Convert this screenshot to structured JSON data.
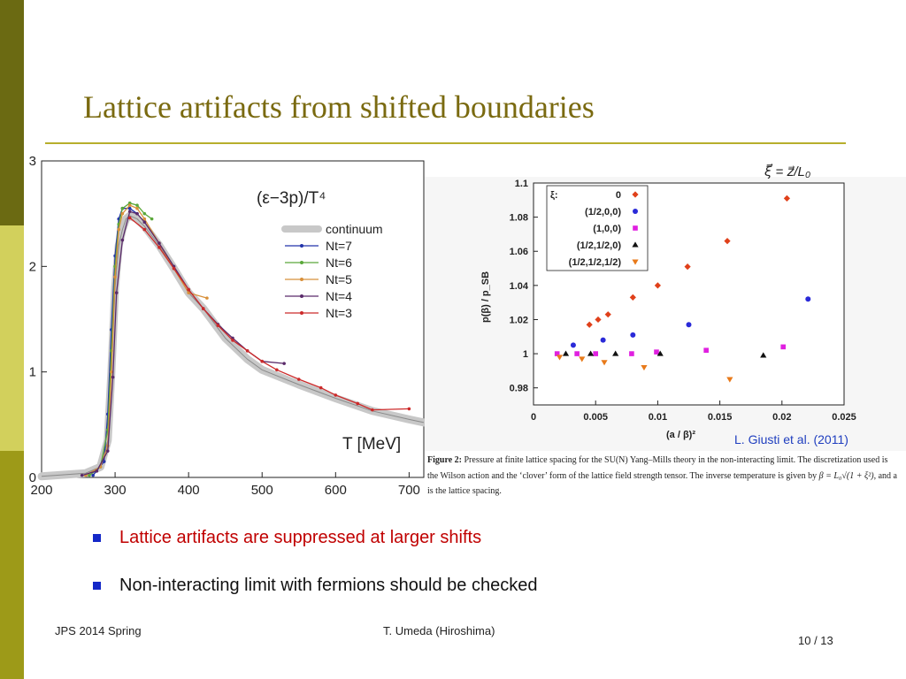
{
  "slide": {
    "title": "Lattice artifacts from shifted boundaries",
    "bullets": [
      "Lattice artifacts are suppressed at larger shifts",
      "Non-interacting limit with fermions should be checked"
    ],
    "footer_left": "JPS 2014 Spring",
    "footer_center": "T. Umeda (Hiroshima)",
    "page_number": "10 / 13",
    "citation": "L. Giusti et al. (2011)",
    "formula": "ξ⃗ = z⃗/L₀",
    "caption": {
      "label": "Figure 2:",
      "text_1": " Pressure at finite lattice spacing for the SU(N) Yang–Mills theory in the non-interacting limit. The discretization used is the Wilson action and the ‘clover’ form of the lattice field strength tensor. The inverse temperature is given by ",
      "formula": "β = L₀√(1 + ξ²)",
      "text_2": ", and a is the lattice spacing."
    },
    "colors": {
      "sidebar_dark": "#6b6a12",
      "sidebar_light": "#d2d05c",
      "title": "#7a6a10",
      "rule": "#b7ae2c",
      "bullet_marker": "#1428c8",
      "bullet_red": "#c00000",
      "citation": "#1f3ebf"
    }
  },
  "chart_data": [
    {
      "type": "line",
      "title": "(ε−3p)/T⁴",
      "xlabel": "T [MeV]",
      "ylabel": "",
      "xlim": [
        200,
        720
      ],
      "ylim": [
        0,
        3
      ],
      "xticks": [
        200,
        300,
        400,
        500,
        600,
        700
      ],
      "yticks": [
        0,
        1,
        2,
        3
      ],
      "legend_position": "right",
      "series": [
        {
          "name": "continuum",
          "color": "#aaaaaa",
          "band": true,
          "x": [
            200,
            260,
            280,
            290,
            295,
            300,
            305,
            310,
            315,
            320,
            330,
            340,
            360,
            380,
            400,
            420,
            450,
            480,
            500,
            550,
            600,
            650,
            700,
            720
          ],
          "y": [
            0.01,
            0.04,
            0.1,
            0.35,
            1.0,
            1.8,
            2.2,
            2.35,
            2.45,
            2.48,
            2.45,
            2.38,
            2.2,
            1.98,
            1.75,
            1.6,
            1.32,
            1.12,
            1.02,
            0.88,
            0.75,
            0.63,
            0.55,
            0.52
          ]
        },
        {
          "name": "Nt=7",
          "color": "#2233aa",
          "x": [
            270,
            285,
            290,
            295,
            300,
            305,
            310,
            320,
            330
          ],
          "y": [
            0.02,
            0.15,
            0.6,
            1.4,
            2.1,
            2.45,
            2.55,
            2.55,
            2.5
          ]
        },
        {
          "name": "Nt=6",
          "color": "#5aa83a",
          "x": [
            265,
            280,
            290,
            295,
            300,
            305,
            310,
            320,
            330,
            340,
            350
          ],
          "y": [
            0.02,
            0.1,
            0.45,
            1.2,
            2.0,
            2.4,
            2.55,
            2.6,
            2.58,
            2.5,
            2.45
          ]
        },
        {
          "name": "Nt=5",
          "color": "#d8903a",
          "x": [
            260,
            280,
            290,
            295,
            300,
            305,
            310,
            320,
            330,
            340,
            360,
            380,
            400,
            425
          ],
          "y": [
            0.02,
            0.1,
            0.3,
            1.0,
            1.9,
            2.35,
            2.5,
            2.58,
            2.55,
            2.45,
            2.22,
            1.98,
            1.75,
            1.7
          ]
        },
        {
          "name": "Nt=4",
          "color": "#5a2a6a",
          "x": [
            255,
            275,
            290,
            297,
            302,
            310,
            320,
            330,
            340,
            360,
            380,
            400,
            420,
            440,
            460,
            480,
            500,
            530
          ],
          "y": [
            0.02,
            0.06,
            0.25,
            0.95,
            1.75,
            2.25,
            2.52,
            2.5,
            2.42,
            2.22,
            2.0,
            1.78,
            1.6,
            1.45,
            1.32,
            1.2,
            1.1,
            1.08
          ]
        },
        {
          "name": "Nt=3",
          "color": "#cc2a2a",
          "x": [
            320,
            340,
            360,
            380,
            400,
            420,
            440,
            460,
            480,
            500,
            520,
            550,
            580,
            600,
            630,
            650,
            700
          ],
          "y": [
            2.46,
            2.35,
            2.18,
            1.98,
            1.78,
            1.6,
            1.44,
            1.3,
            1.2,
            1.1,
            1.02,
            0.93,
            0.85,
            0.78,
            0.7,
            0.64,
            0.65
          ]
        }
      ]
    },
    {
      "type": "scatter",
      "title": "",
      "xlabel": "(a / β)²",
      "ylabel": "p(β) / p_SB",
      "xlim": [
        0,
        0.025
      ],
      "ylim": [
        0.97,
        1.1
      ],
      "xticks": [
        0,
        0.005,
        0.01,
        0.015,
        0.02,
        0.025
      ],
      "xtick_labels": [
        "0",
        "0.005",
        "0.01",
        "0.015",
        "0.02",
        "0.025"
      ],
      "yticks": [
        0.98,
        1,
        1.02,
        1.04,
        1.06,
        1.08,
        1.1
      ],
      "ytick_labels": [
        "0.98",
        "1",
        "1.02",
        "1.04",
        "1.06",
        "1.08",
        "1.1"
      ],
      "legend_title": "ξ:",
      "legend_position": "top-left",
      "series": [
        {
          "name": "0",
          "color": "#e0401a",
          "marker": "diamond",
          "x": [
            0.0045,
            0.0052,
            0.006,
            0.008,
            0.01,
            0.0124,
            0.0156,
            0.0204
          ],
          "y": [
            1.017,
            1.02,
            1.023,
            1.033,
            1.04,
            1.051,
            1.066,
            1.091
          ]
        },
        {
          "name": "(1/2,0,0)",
          "color": "#2a2ad8",
          "marker": "circle",
          "x": [
            0.0032,
            0.0056,
            0.008,
            0.0125,
            0.0221
          ],
          "y": [
            1.005,
            1.008,
            1.011,
            1.017,
            1.032
          ]
        },
        {
          "name": "(1,0,0)",
          "color": "#e020e0",
          "marker": "square",
          "x": [
            0.0019,
            0.0035,
            0.005,
            0.0079,
            0.0099,
            0.0139,
            0.0201
          ],
          "y": [
            1.0,
            1.0,
            1.0,
            1.0,
            1.001,
            1.002,
            1.004
          ]
        },
        {
          "name": "(1/2,1/2,0)",
          "color": "#111111",
          "marker": "triangle-up",
          "x": [
            0.0026,
            0.0046,
            0.0066,
            0.0102,
            0.0185
          ],
          "y": [
            1.0,
            1.0,
            1.0,
            1.0,
            0.999
          ]
        },
        {
          "name": "(1/2,1/2,1/2)",
          "color": "#e87a1a",
          "marker": "triangle-down",
          "x": [
            0.0021,
            0.0039,
            0.0057,
            0.0089,
            0.0158
          ],
          "y": [
            0.998,
            0.997,
            0.995,
            0.992,
            0.985
          ]
        }
      ]
    }
  ]
}
